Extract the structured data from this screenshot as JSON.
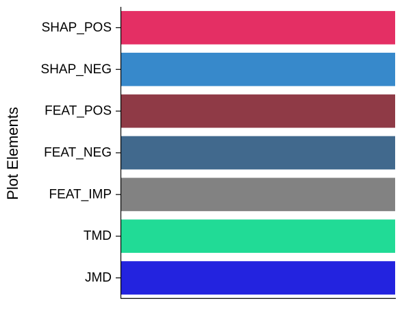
{
  "chart_data": {
    "type": "bar",
    "orientation": "horizontal",
    "ylabel": "Plot Elements",
    "xlabel": "",
    "categories": [
      "SHAP_POS",
      "SHAP_NEG",
      "FEAT_POS",
      "FEAT_NEG",
      "FEAT_IMP",
      "TMD",
      "JMD"
    ],
    "values": [
      1,
      1,
      1,
      1,
      1,
      1,
      1
    ],
    "colors": [
      "#E42F64",
      "#3789CB",
      "#8F3A46",
      "#41698D",
      "#828282",
      "#21DB96",
      "#2323DF"
    ],
    "xlim": [
      0,
      1
    ],
    "x_ticks_visible": false,
    "grid": false,
    "legend": "none"
  }
}
